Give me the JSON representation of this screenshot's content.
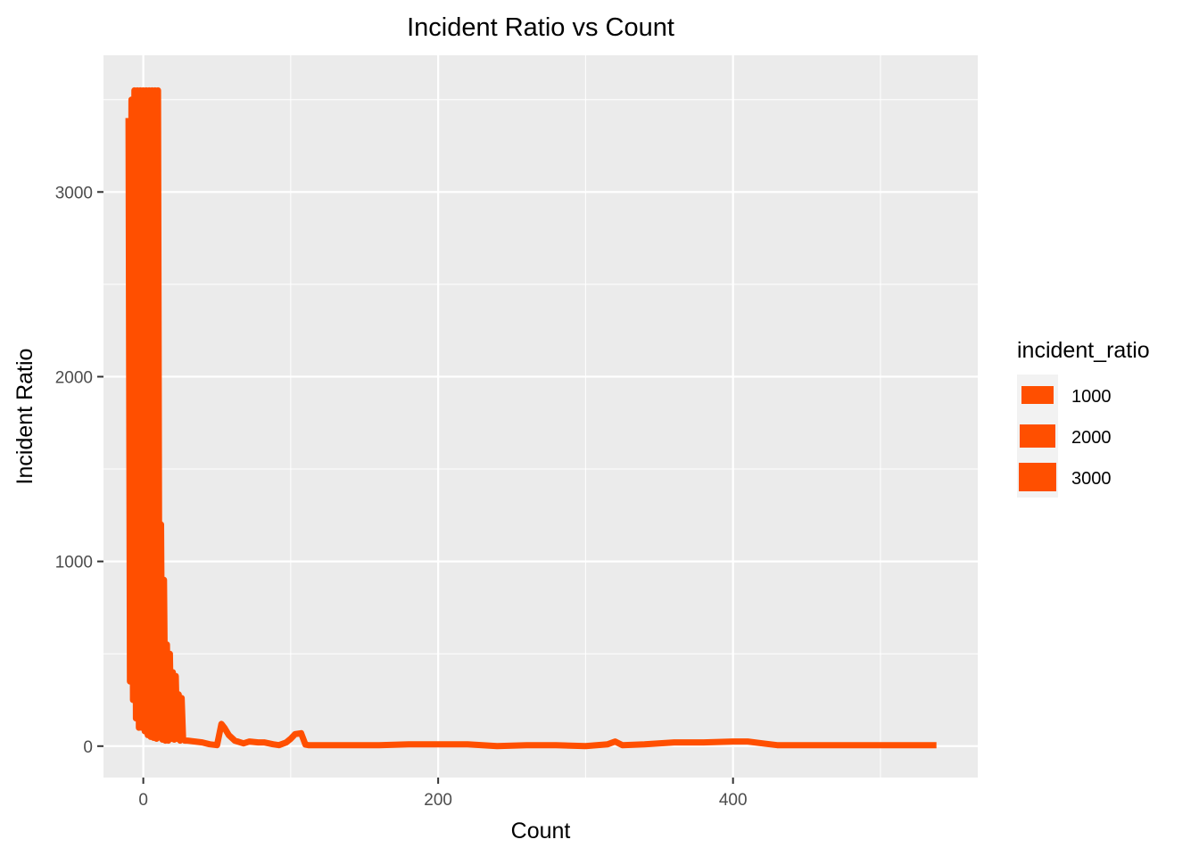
{
  "chart_data": {
    "type": "line",
    "title": "Incident Ratio vs Count",
    "xlabel": "Count",
    "ylabel": "Incident Ratio",
    "xlim": [
      -27,
      566
    ],
    "ylim": [
      -170,
      3740
    ],
    "x_ticks": [
      0,
      200,
      400
    ],
    "x_tick_labels": [
      "0",
      "200",
      "400"
    ],
    "y_ticks": [
      0,
      1000,
      2000,
      3000
    ],
    "y_tick_labels": [
      "0",
      "1000",
      "2000",
      "3000"
    ],
    "grid": true,
    "colors": {
      "series": "#FF4F00",
      "panel": "#EBEBEB",
      "grid": "#FFFFFF",
      "legend_key_bg": "#F2F2F2"
    },
    "legend": {
      "title": "incident_ratio",
      "position": "right",
      "entries": [
        "1000",
        "2000",
        "3000"
      ]
    },
    "series": [
      {
        "x": [
          -10,
          -9,
          -8,
          -7,
          -6,
          -5,
          -4,
          -3,
          -2,
          -1,
          0,
          1,
          2,
          3,
          4,
          5,
          6,
          7,
          8,
          9,
          10,
          11,
          12,
          13,
          14,
          15,
          16,
          17,
          18,
          19,
          20,
          21,
          22,
          23,
          24,
          25,
          26,
          27,
          28,
          30,
          35,
          40,
          45,
          50,
          53,
          55,
          58,
          62,
          68,
          72,
          78,
          82,
          88,
          92,
          97,
          100,
          103,
          107,
          110,
          112,
          120,
          140,
          160,
          180,
          200,
          220,
          230,
          240,
          260,
          280,
          300,
          315,
          320,
          325,
          340,
          360,
          380,
          400,
          410,
          420,
          430,
          450,
          480,
          500,
          520,
          538
        ],
        "y": [
          3400,
          350,
          3500,
          250,
          3550,
          150,
          3550,
          100,
          3550,
          100,
          3550,
          80,
          3550,
          60,
          3550,
          50,
          3550,
          45,
          3550,
          40,
          3550,
          50,
          1200,
          35,
          900,
          30,
          550,
          30,
          500,
          40,
          400,
          35,
          380,
          40,
          280,
          30,
          260,
          40,
          30,
          30,
          25,
          20,
          10,
          5,
          120,
          100,
          60,
          30,
          15,
          25,
          20,
          20,
          10,
          5,
          20,
          40,
          65,
          70,
          8,
          5,
          5,
          5,
          5,
          10,
          10,
          10,
          5,
          0,
          5,
          5,
          0,
          10,
          25,
          5,
          10,
          20,
          20,
          25,
          25,
          15,
          5,
          5,
          5,
          5,
          5,
          5
        ]
      }
    ]
  }
}
